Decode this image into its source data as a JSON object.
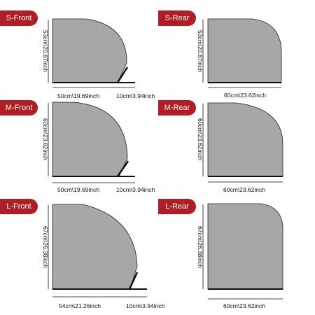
{
  "panels": [
    {
      "id": "s_front",
      "badge": "S-Front",
      "height_label": "53cm\\20.87inch",
      "width_label": "50cm\\19.69inch",
      "ext_label": "10cm\\3.94inch"
    },
    {
      "id": "s_rear",
      "badge": "S-Rear",
      "height_label": "53cm\\20.87inch",
      "width_label": "60cm\\23.62inch"
    },
    {
      "id": "m_front",
      "badge": "M-Front",
      "height_label": "60cm\\23.62inch",
      "width_label": "50cm\\19.69inch",
      "ext_label": "10cm\\3.94inch"
    },
    {
      "id": "m_rear",
      "badge": "M-Rear",
      "height_label": "60cm\\23.62inch",
      "width_label": "60cm\\23.62inch"
    },
    {
      "id": "l_front",
      "badge": "L-Front",
      "height_label": "67cm\\26.38inch",
      "width_label": "54cm\\21.26inch",
      "ext_label": "10cm\\3.94inch"
    },
    {
      "id": "l_rear",
      "badge": "L-Rear",
      "height_label": "67cm\\26.38inch",
      "width_label": "60cm\\23.62inch"
    }
  ],
  "colors": {
    "badge": "#b01e23",
    "panel_fill": "#a7a7a7",
    "line": "#111111"
  }
}
